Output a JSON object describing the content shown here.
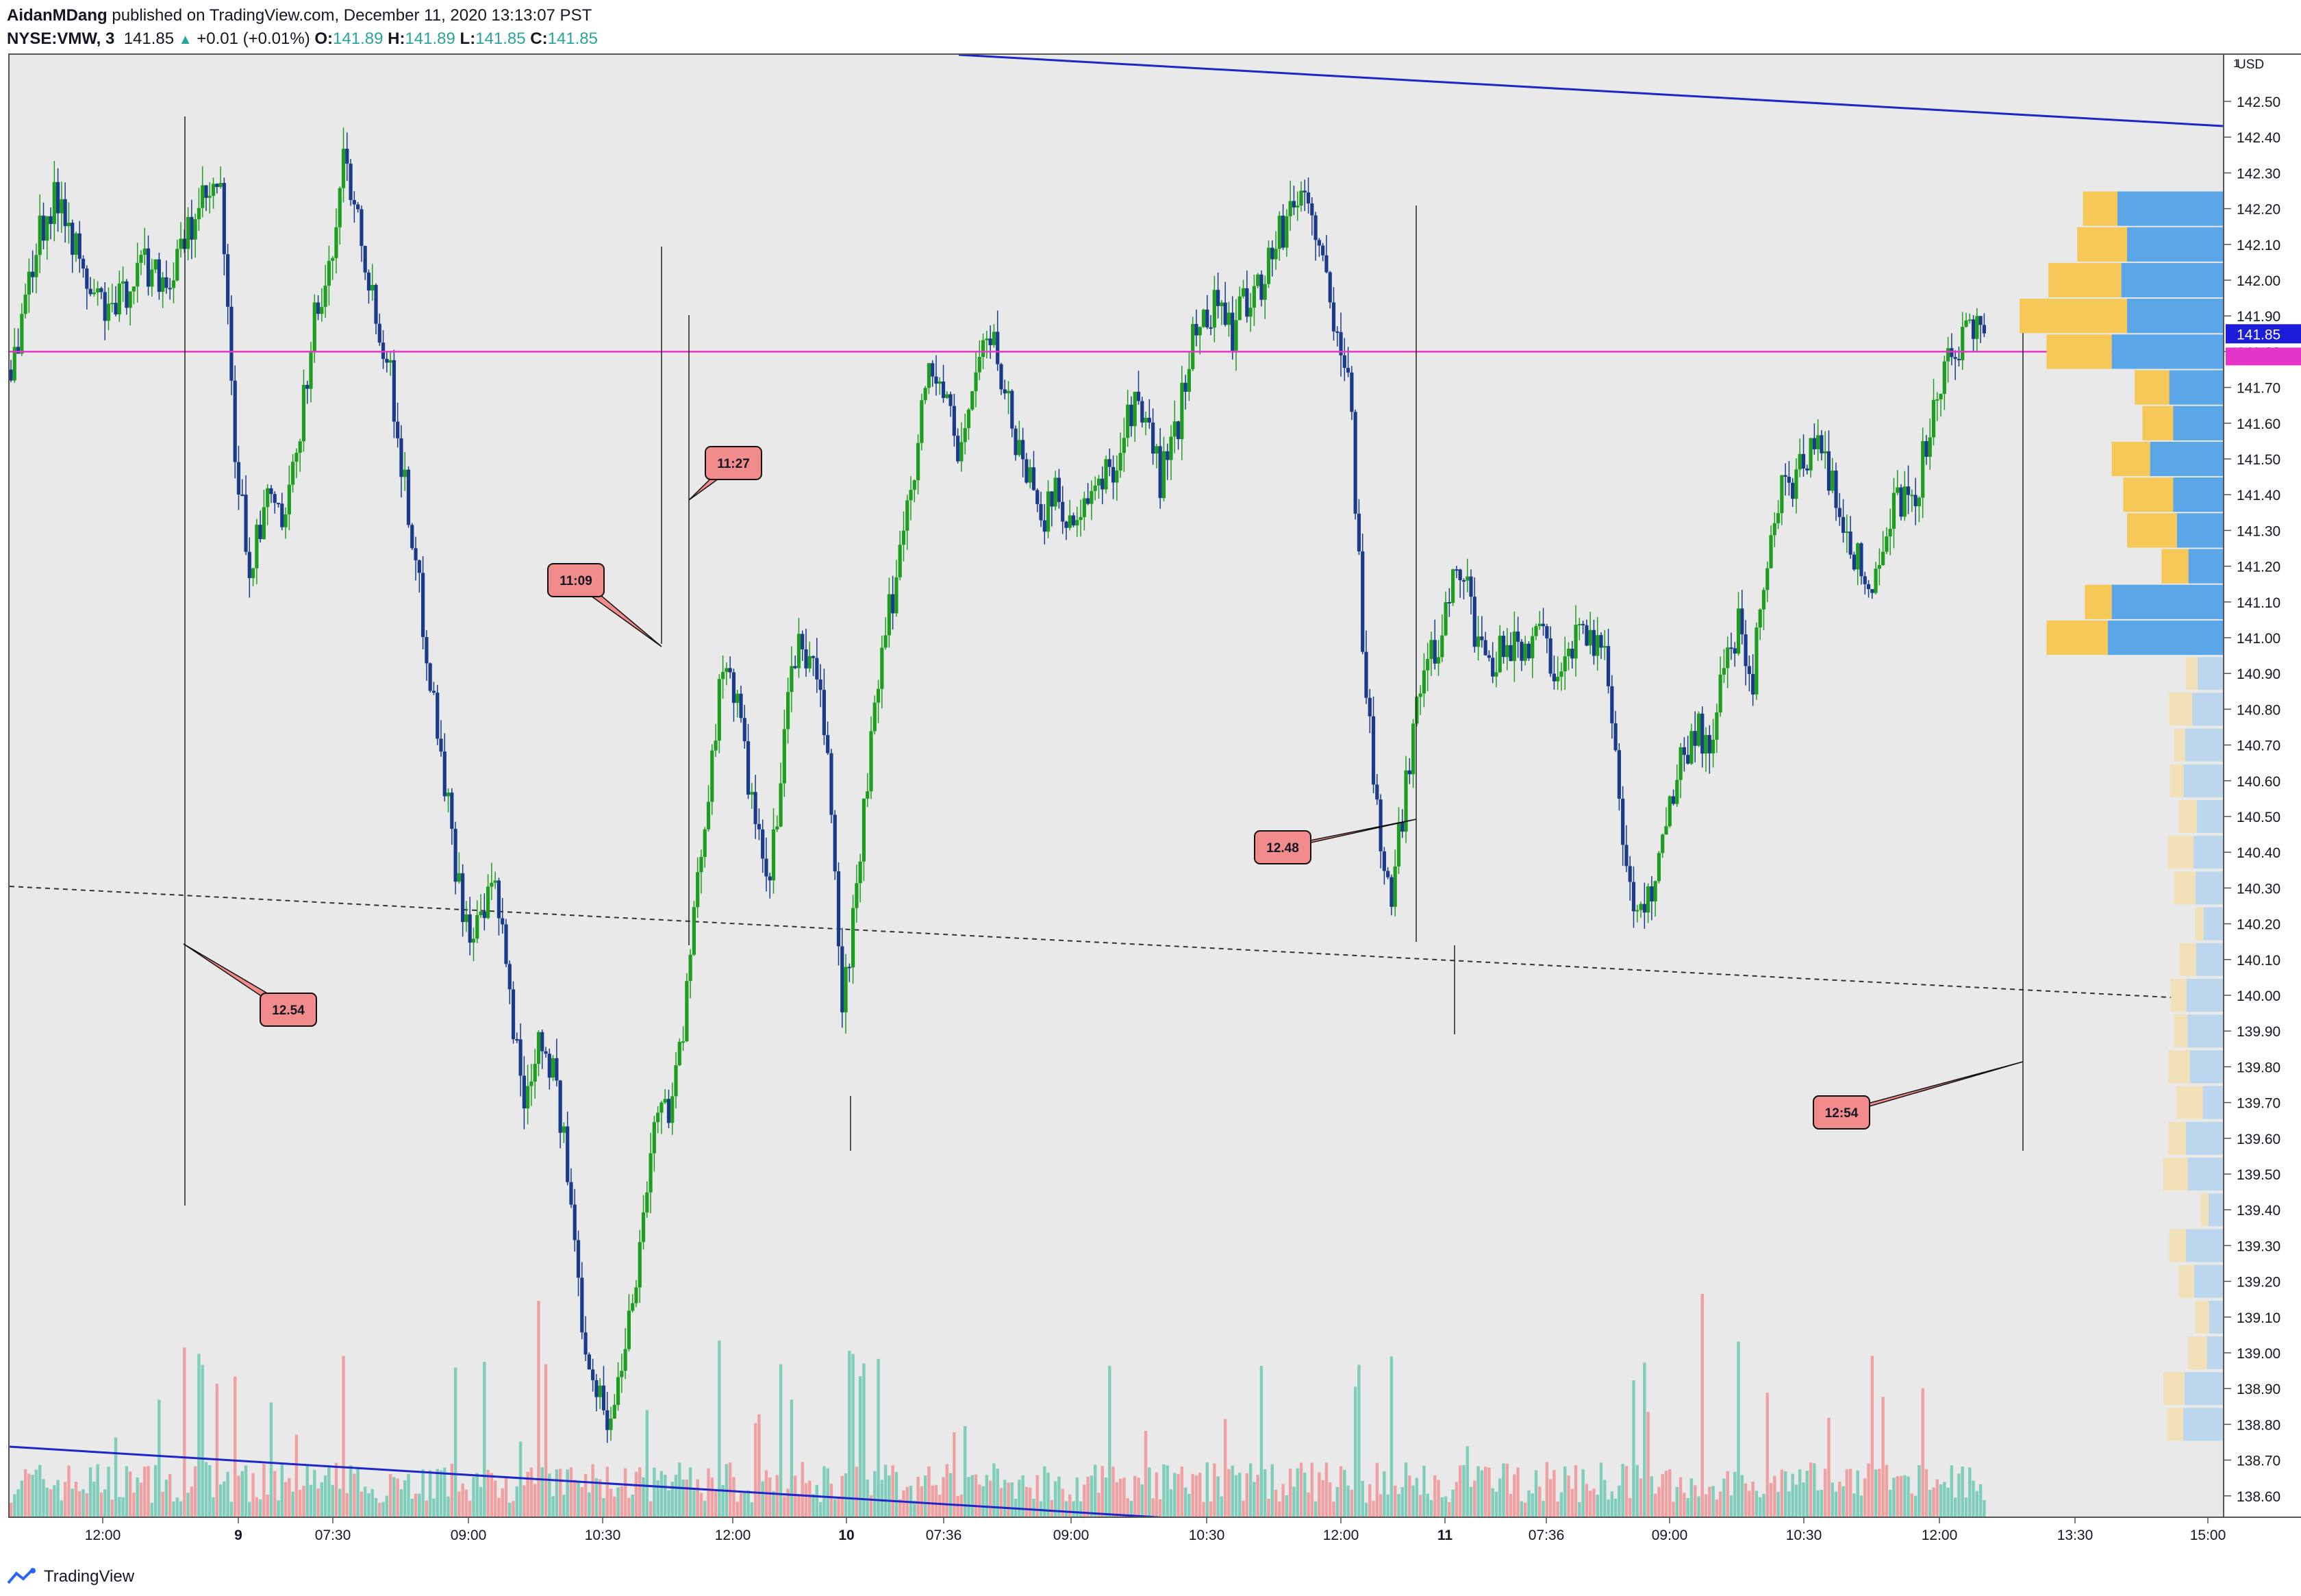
{
  "header": {
    "author": "AidanMDang",
    "published_text": "published on TradingView.com, December 11, 2020 13:13:07 PST",
    "symbol": "NYSE:VMW, 3",
    "last_price": "141.85",
    "change_arrow": "▲",
    "change": "+0.01 (+0.01%)",
    "o_label": "O:",
    "o_value": "141.89",
    "h_label": "H:",
    "h_value": "141.89",
    "l_label": "L:",
    "l_value": "141.85",
    "c_label": "C:",
    "c_value": "141.85"
  },
  "footer": {
    "brand": "TradingView"
  },
  "colors": {
    "bull": "#1e9e1e",
    "bear": "#1a3a8c",
    "hline": "#e535c8",
    "trend": "#1e26c8",
    "callout": "#f28b8b",
    "vp_up": "#5aa6e6",
    "vp_down": "#f5c858"
  },
  "chart_data": {
    "type": "candlestick",
    "symbol": "NYSE:VMW",
    "interval": "3",
    "currency_label": "USD",
    "axis_corner_label": "1",
    "y_ticks": [
      "142.50",
      "142.40",
      "142.30",
      "142.20",
      "142.10",
      "142.00",
      "141.90",
      "141.80",
      "141.70",
      "141.60",
      "141.50",
      "141.40",
      "141.30",
      "141.20",
      "141.10",
      "141.00",
      "140.90",
      "140.80",
      "140.70",
      "140.60",
      "140.50",
      "140.40",
      "140.30",
      "140.20",
      "140.10",
      "140.00",
      "139.90",
      "139.80",
      "139.70",
      "139.60",
      "139.50",
      "139.40",
      "139.30",
      "139.20",
      "139.10",
      "139.00",
      "138.90",
      "138.80",
      "138.70",
      "138.60"
    ],
    "ylim": [
      138.55,
      142.6
    ],
    "x_ticks": [
      "12:00",
      "9",
      "07:30",
      "09:00",
      "10:30",
      "12:00",
      "10",
      "07:36",
      "09:00",
      "10:30",
      "12:00",
      "11",
      "07:36",
      "09:00",
      "10:30",
      "12:00",
      "13:30",
      "15:00"
    ],
    "current_price_label": "141.85",
    "current_price": 141.85,
    "horizontal_line": 141.8,
    "callouts": [
      "12.54",
      "11:09",
      "11:27",
      "12.48",
      "12:54"
    ],
    "volume_profile": {
      "levels": [
        142.2,
        142.1,
        142.0,
        141.9,
        141.8,
        141.7,
        141.6,
        141.5,
        141.4,
        141.3,
        141.2,
        141.1,
        141.0
      ],
      "up": [
        0.55,
        0.5,
        0.53,
        0.5,
        0.58,
        0.28,
        0.26,
        0.38,
        0.26,
        0.24,
        0.18,
        0.58,
        0.6
      ],
      "down": [
        0.18,
        0.26,
        0.38,
        0.56,
        0.34,
        0.18,
        0.16,
        0.2,
        0.26,
        0.26,
        0.14,
        0.14,
        0.32
      ]
    },
    "key_prices": {
      "day1_open": 141.75,
      "day1_high": 142.45,
      "day1_low": 138.8,
      "day2_high": 142.28,
      "day2_low": 139.6,
      "day3_low": 139.9,
      "day3_close": 141.85
    }
  }
}
